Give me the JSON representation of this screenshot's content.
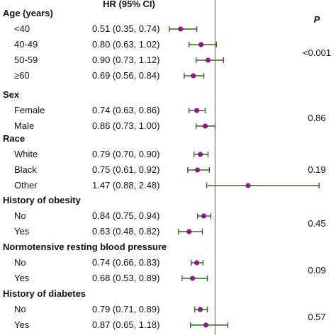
{
  "chart_data": {
    "type": "forest",
    "header": {
      "hr": "HR (95% CI)",
      "p": "P"
    },
    "reference_line": 1.0,
    "colors": {
      "ci": "#2e6b1f",
      "point": "#8b1a8b",
      "reference": "#c0392b"
    },
    "groups": [
      {
        "label": "Age (years)",
        "p_value": "<0.001",
        "rows": [
          {
            "label": "<40",
            "text": "0.51 (0.35, 0.74)",
            "hr": 0.51,
            "lo": 0.35,
            "hi": 0.74
          },
          {
            "label": "40-49",
            "text": "0.80 (0.63, 1.02)",
            "hr": 0.8,
            "lo": 0.63,
            "hi": 1.02
          },
          {
            "label": "50-59",
            "text": "0.90 (0.73, 1.12)",
            "hr": 0.9,
            "lo": 0.73,
            "hi": 1.12
          },
          {
            "label": "≥60",
            "text": "0.69 (0.56, 0.84)",
            "hr": 0.69,
            "lo": 0.56,
            "hi": 0.84
          }
        ]
      },
      {
        "label": "Sex",
        "p_value": "0.86",
        "rows": [
          {
            "label": "Female",
            "text": "0.74 (0.63, 0.86)",
            "hr": 0.74,
            "lo": 0.63,
            "hi": 0.86
          },
          {
            "label": "Male",
            "text": "0.86 (0.73, 1.00)",
            "hr": 0.86,
            "lo": 0.73,
            "hi": 1.0
          }
        ]
      },
      {
        "label": "Race",
        "p_value": "0.19",
        "rows": [
          {
            "label": "White",
            "text": "0.79 (0.70, 0.90)",
            "hr": 0.79,
            "lo": 0.7,
            "hi": 0.9
          },
          {
            "label": "Black",
            "text": "0.75 (0.61, 0.92)",
            "hr": 0.75,
            "lo": 0.61,
            "hi": 0.92
          },
          {
            "label": "Other",
            "text": "1.47 (0.88, 2.48)",
            "hr": 1.47,
            "lo": 0.88,
            "hi": 2.48
          }
        ]
      },
      {
        "label": "History of obesity",
        "p_value": "0.45",
        "rows": [
          {
            "label": "No",
            "text": "0.84 (0.75, 0.94)",
            "hr": 0.84,
            "lo": 0.75,
            "hi": 0.94
          },
          {
            "label": "Yes",
            "text": "0.63 (0.48, 0.82)",
            "hr": 0.63,
            "lo": 0.48,
            "hi": 0.82
          }
        ]
      },
      {
        "label": "Normotensive resting blood pressure",
        "p_value": "0.09",
        "rows": [
          {
            "label": "No",
            "text": "0.74 (0.66, 0.83)",
            "hr": 0.74,
            "lo": 0.66,
            "hi": 0.83
          },
          {
            "label": "Yes",
            "text": "0.68 (0.53, 0.89)",
            "hr": 0.68,
            "lo": 0.53,
            "hi": 0.89
          }
        ]
      },
      {
        "label": "History of diabetes",
        "p_value": "0.57",
        "rows": [
          {
            "label": "No",
            "text": "0.79 (0.71, 0.89)",
            "hr": 0.79,
            "lo": 0.71,
            "hi": 0.89
          },
          {
            "label": "Yes",
            "text": "0.87 (0.65, 1.18)",
            "hr": 0.87,
            "lo": 0.65,
            "hi": 1.18
          }
        ]
      }
    ]
  }
}
